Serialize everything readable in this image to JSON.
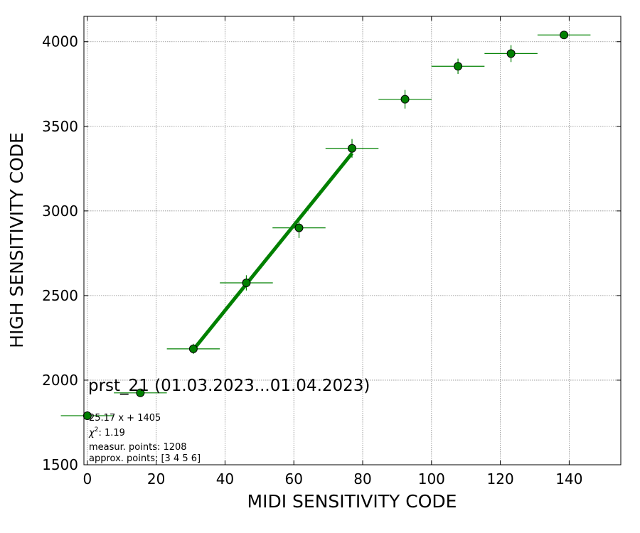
{
  "chart_data": {
    "type": "scatter",
    "xlabel": "MIDI SENSITIVITY CODE",
    "ylabel": "HIGH SENSITIVITY CODE",
    "xlim": [
      -1,
      155
    ],
    "ylim": [
      1500,
      4150
    ],
    "xticks": [
      0,
      20,
      40,
      60,
      80,
      100,
      120,
      140
    ],
    "yticks": [
      1500,
      2000,
      2500,
      3000,
      3500,
      4000
    ],
    "grid": true,
    "marker_color": "#008000",
    "points": [
      {
        "x": 0,
        "y": 1790,
        "xerr": 7.7,
        "yerr": 0
      },
      {
        "x": 15.4,
        "y": 1925,
        "xerr": 7.7,
        "yerr": 0
      },
      {
        "x": 30.8,
        "y": 2185,
        "xerr": 7.7,
        "yerr": 30
      },
      {
        "x": 46.2,
        "y": 2575,
        "xerr": 7.7,
        "yerr": 45
      },
      {
        "x": 61.5,
        "y": 2900,
        "xerr": 7.7,
        "yerr": 60
      },
      {
        "x": 76.9,
        "y": 3370,
        "xerr": 7.7,
        "yerr": 55
      },
      {
        "x": 92.3,
        "y": 3660,
        "xerr": 7.7,
        "yerr": 55
      },
      {
        "x": 107.7,
        "y": 3855,
        "xerr": 7.7,
        "yerr": 45
      },
      {
        "x": 123.1,
        "y": 3930,
        "xerr": 7.7,
        "yerr": 50
      },
      {
        "x": 138.5,
        "y": 4040,
        "xerr": 7.7,
        "yerr": 20
      }
    ],
    "fit": {
      "slope": 25.17,
      "intercept": 1405,
      "x_range": [
        30.8,
        76.9
      ],
      "color": "#008000"
    },
    "annotation": {
      "title": "prst_21 (01.03.2023...01.04.2023)",
      "equation": "25.17 x + 1405",
      "chi_label": "χ",
      "chi_sup": "2",
      "chi_value": ": 1.19",
      "measur": "measur. points: 1208",
      "approx": "approx. points: [3 4 5 6]"
    }
  }
}
